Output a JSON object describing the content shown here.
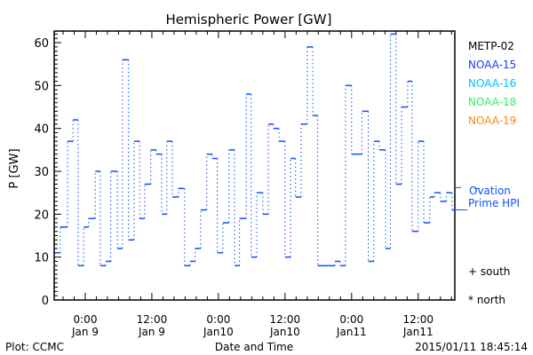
{
  "chart_data": {
    "type": "line",
    "title": "Hemispheric Power [GW]",
    "xlabel": "Date and Time",
    "ylabel": "P [GW]",
    "ylim": [
      0,
      62.7
    ],
    "xlim_hours_from_jan9_0000": [
      -5.6,
      66.6
    ],
    "yticks": [
      0,
      10,
      20,
      30,
      40,
      50,
      60
    ],
    "xticks": [
      {
        "hours": 0,
        "line1": "0:00",
        "line2": "Jan 9"
      },
      {
        "hours": 12,
        "line1": "12:00",
        "line2": "Jan 9"
      },
      {
        "hours": 24,
        "line1": "0:00",
        "line2": "Jan10"
      },
      {
        "hours": 36,
        "line1": "12:00",
        "line2": "Jan10"
      },
      {
        "hours": 48,
        "line1": "0:00",
        "line2": "Jan11"
      },
      {
        "hours": 60,
        "line1": "12:00",
        "line2": "Jan11"
      }
    ],
    "legend": [
      {
        "label": "METP-02",
        "color": "#000000"
      },
      {
        "label": "NOAA-15",
        "color": "#1a3cff"
      },
      {
        "label": "NOAA-16",
        "color": "#00c0ff"
      },
      {
        "label": "NOAA-18",
        "color": "#33ee66"
      },
      {
        "label": "NOAA-19",
        "color": "#ff8a10"
      }
    ],
    "ovation": {
      "label1": "Ovation",
      "label2": "Prime HPI",
      "color": "#1050ff",
      "current_value": 26
    },
    "markers": {
      "south": "+ south",
      "north": "* north"
    },
    "series": [
      {
        "name": "NOAA-15 HPI",
        "color": "#1050ff",
        "step_start_hours": [
          -5.6,
          -5.4,
          -4.5,
          -3.2,
          -2.2,
          -1.3,
          -0.3,
          0.6,
          1.8,
          2.7,
          3.7,
          4.6,
          5.8,
          6.7,
          7.8,
          8.8,
          9.8,
          10.7,
          11.8,
          12.8,
          13.8,
          14.7,
          15.7,
          16.8,
          17.9,
          18.9,
          19.8,
          20.8,
          21.9,
          22.9,
          23.8,
          24.8,
          25.9,
          26.9,
          27.8,
          29.0,
          29.9,
          30.9,
          32.0,
          33.0,
          33.9,
          34.9,
          36.0,
          37.0,
          37.9,
          38.9,
          40.0,
          41.0,
          41.9,
          45.0,
          45.9,
          46.9,
          48.0,
          49.9,
          51.0,
          52.0,
          53.0,
          54.1,
          55.0,
          56.0,
          57.0,
          58.1,
          58.9,
          60.0,
          61.0,
          62.1,
          62.9,
          64.0,
          65.1,
          66.1
        ],
        "end_hour": 66.6,
        "values": [
          8,
          11,
          17,
          37,
          42,
          8,
          17,
          19,
          30,
          8,
          9,
          30,
          12,
          56,
          14,
          37,
          19,
          27,
          35,
          34,
          20,
          37,
          24,
          26,
          8,
          9,
          12,
          21,
          34,
          33,
          11,
          18,
          35,
          8,
          19,
          48,
          10,
          25,
          20,
          41,
          40,
          37,
          10,
          33,
          24,
          41,
          59,
          43,
          8,
          9,
          8,
          50,
          34,
          44,
          9,
          37,
          35,
          12,
          62,
          27,
          45,
          51,
          16,
          37,
          18,
          24,
          25,
          23,
          25,
          21
        ]
      }
    ]
  },
  "footer": {
    "left": "Plot: CCMC",
    "right": "2015/01/11 18:45:14"
  }
}
